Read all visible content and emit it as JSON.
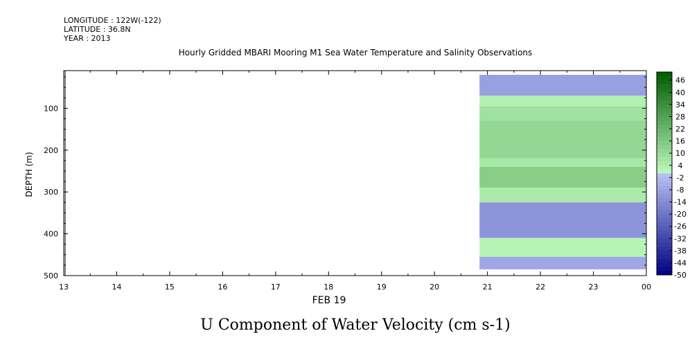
{
  "header": {
    "longitude": "LONGITUDE : 122W(-122)",
    "latitude": "LATITUDE : 36.8N",
    "year": "YEAR : 2013"
  },
  "chart_data": {
    "type": "heatmap",
    "title": "Hourly Gridded MBARI Mooring M1 Sea Water Temperature and Salinity Observations",
    "subtitle": "U Component of Water Velocity (cm s-1)",
    "xlabel": "FEB 19",
    "ylabel": "DEPTH (m)",
    "x_tick_labels": [
      "13",
      "14",
      "15",
      "16",
      "17",
      "18",
      "19",
      "20",
      "21",
      "22",
      "23",
      "00"
    ],
    "y_tick_labels": [
      "100",
      "200",
      "300",
      "400",
      "500"
    ],
    "y_tick_values": [
      100,
      200,
      300,
      400,
      500
    ],
    "ylim": [
      500,
      10
    ],
    "data_x_range": [
      20.85,
      24.0
    ],
    "data_y_range": [
      20,
      485
    ],
    "colorbar_labels": [
      "46",
      "40",
      "34",
      "28",
      "22",
      "16",
      "10",
      "4",
      "-2",
      "-8",
      "-14",
      "-20",
      "-26",
      "-32",
      "-38",
      "-44",
      "-50"
    ],
    "colorbar_range": [
      -50,
      50
    ],
    "colorbar_step": 2,
    "bands": [
      {
        "depth": [
          20,
          70
        ],
        "value": -9
      },
      {
        "depth": [
          70,
          95
        ],
        "value": 3
      },
      {
        "depth": [
          95,
          130
        ],
        "value": 8
      },
      {
        "depth": [
          130,
          220
        ],
        "value": 11
      },
      {
        "depth": [
          220,
          240
        ],
        "value": 6
      },
      {
        "depth": [
          240,
          290
        ],
        "value": 14
      },
      {
        "depth": [
          290,
          325
        ],
        "value": 5
      },
      {
        "depth": [
          325,
          410
        ],
        "value": -12
      },
      {
        "depth": [
          410,
          455
        ],
        "value": 2
      },
      {
        "depth": [
          455,
          485
        ],
        "value": -7
      }
    ]
  }
}
